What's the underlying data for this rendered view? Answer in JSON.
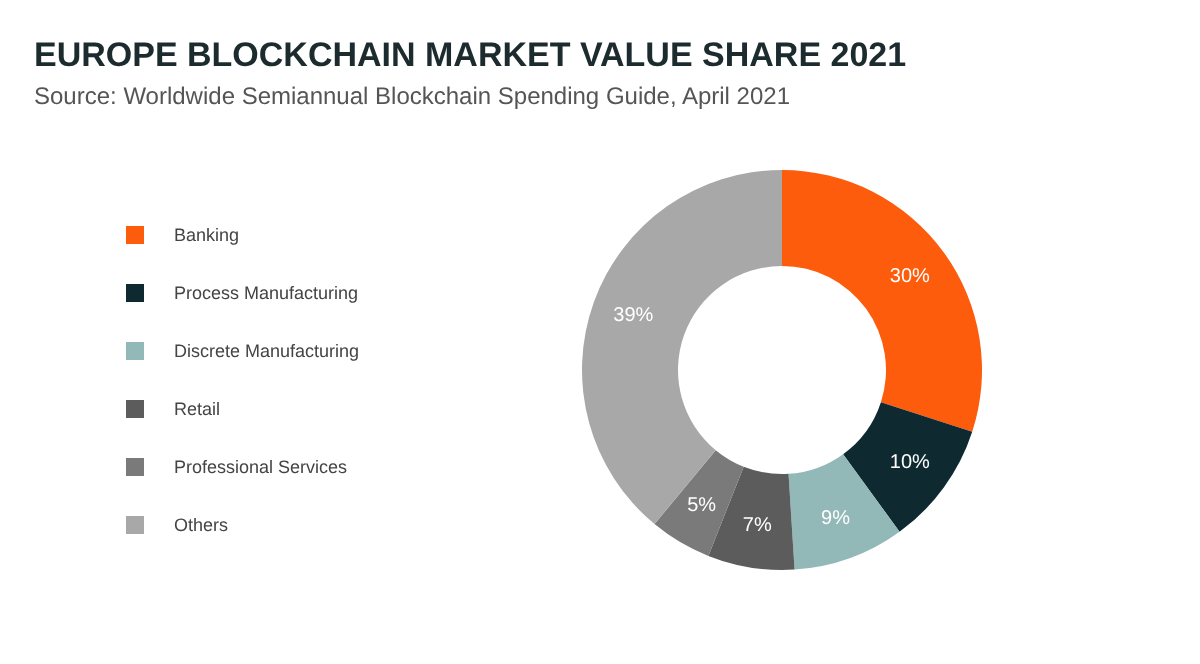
{
  "chart_data": {
    "type": "donut",
    "title": "EUROPE BLOCKCHAIN MARKET VALUE SHARE 2021",
    "subtitle": "Source: Worldwide Semiannual Blockchain Spending Guide, April 2021",
    "categories": [
      "Banking",
      "Process Manufacturing",
      "Discrete Manufacturing",
      "Retail",
      "Professional Services",
      "Others"
    ],
    "values": [
      30,
      10,
      9,
      7,
      5,
      39
    ],
    "value_labels": [
      "30%",
      "10%",
      "9%",
      "7%",
      "5%",
      "39%"
    ],
    "colors": [
      "#fc5c0c",
      "#0e2a30",
      "#93b8b8",
      "#5c5c5c",
      "#7a7a7a",
      "#a8a8a8"
    ],
    "legend": "left"
  }
}
